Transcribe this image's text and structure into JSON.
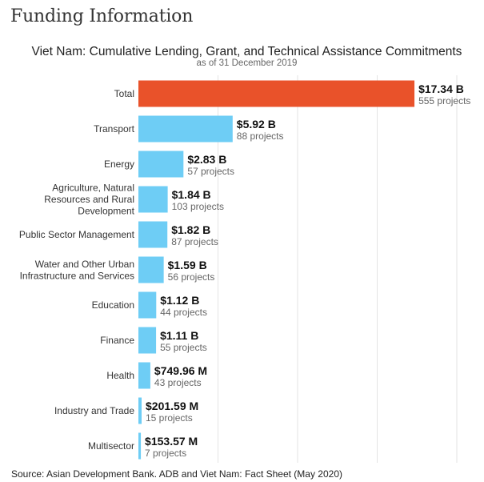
{
  "page": {
    "heading": "Funding Information",
    "source": "Source: Asian Development Bank. ADB and Viet Nam: Fact Sheet (May 2020)"
  },
  "chart_data": {
    "type": "bar",
    "orientation": "horizontal",
    "title": "Viet Nam: Cumulative Lending, Grant, and Technical Assistance Commitments",
    "subtitle": "as of 31 December 2019",
    "unit": "$ billion",
    "xlim": [
      0,
      20
    ],
    "grid": true,
    "categories": [
      [
        "Total"
      ],
      [
        "Transport"
      ],
      [
        "Energy"
      ],
      [
        "Agriculture, Natural",
        "Resources and Rural",
        "Development"
      ],
      [
        "Public Sector Management"
      ],
      [
        "Water and Other Urban",
        "Infrastructure and Services"
      ],
      [
        "Education"
      ],
      [
        "Finance"
      ],
      [
        "Health"
      ],
      [
        "Industry and Trade"
      ],
      [
        "Multisector"
      ]
    ],
    "values": [
      17.34,
      5.92,
      2.83,
      1.84,
      1.82,
      1.59,
      1.12,
      1.11,
      0.74996,
      0.20159,
      0.15357
    ],
    "value_labels": [
      "$17.34 B",
      "$5.92 B",
      "$2.83 B",
      "$1.84 B",
      "$1.82 B",
      "$1.59 B",
      "$1.12 B",
      "$1.11 B",
      "$749.96 M",
      "$201.59 M",
      "$153.57 M"
    ],
    "project_labels": [
      "555 projects",
      "88 projects",
      "57 projects",
      "103 projects",
      "87 projects",
      "56 projects",
      "44 projects",
      "55 projects",
      "43 projects",
      "15 projects",
      "7 projects"
    ],
    "colors": {
      "total": "#E9522A",
      "sector": "#6ECDF5",
      "grid": "#E3E3E3"
    }
  }
}
